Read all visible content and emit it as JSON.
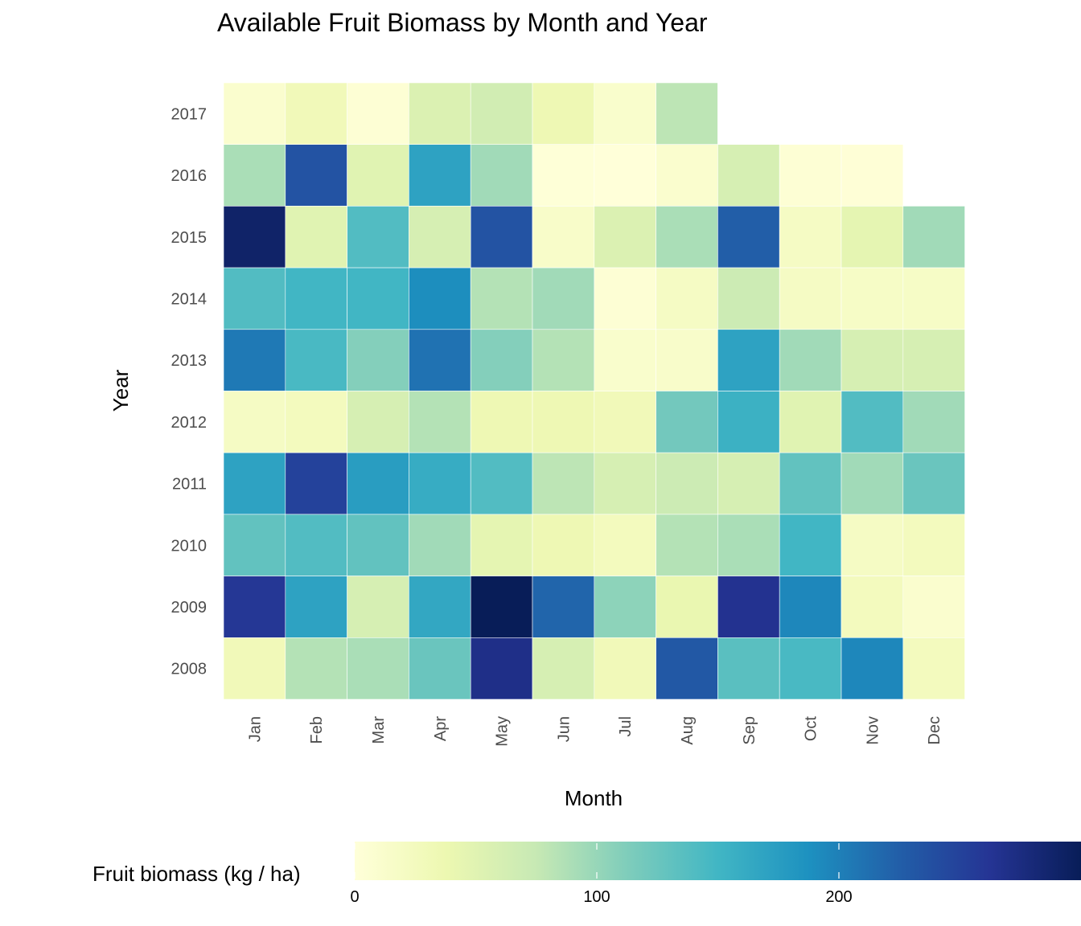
{
  "chart_data": {
    "type": "heatmap",
    "title": "Available Fruit Biomass by Month and Year",
    "xlabel": "Month",
    "ylabel": "Year",
    "months": [
      "Jan",
      "Feb",
      "Mar",
      "Apr",
      "May",
      "Jun",
      "Jul",
      "Aug",
      "Sep",
      "Oct",
      "Nov",
      "Dec"
    ],
    "years": [
      "2017",
      "2016",
      "2015",
      "2014",
      "2013",
      "2012",
      "2011",
      "2010",
      "2009",
      "2008"
    ],
    "values": [
      [
        10,
        30,
        5,
        55,
        65,
        35,
        12,
        80,
        null,
        null,
        null,
        null
      ],
      [
        90,
        235,
        50,
        170,
        95,
        2,
        0,
        10,
        60,
        5,
        3,
        null
      ],
      [
        290,
        50,
        140,
        60,
        235,
        15,
        55,
        90,
        225,
        20,
        45,
        95
      ],
      [
        140,
        150,
        150,
        190,
        85,
        95,
        5,
        20,
        70,
        20,
        18,
        18
      ],
      [
        205,
        145,
        110,
        210,
        110,
        85,
        12,
        14,
        170,
        95,
        60,
        60
      ],
      [
        20,
        25,
        60,
        85,
        35,
        35,
        30,
        120,
        155,
        50,
        140,
        95
      ],
      [
        170,
        250,
        175,
        160,
        140,
        80,
        60,
        70,
        60,
        130,
        95,
        125
      ],
      [
        130,
        140,
        130,
        95,
        45,
        35,
        25,
        85,
        90,
        150,
        20,
        25
      ],
      [
        260,
        170,
        60,
        165,
        310,
        220,
        105,
        40,
        265,
        195,
        25,
        10
      ],
      [
        30,
        85,
        90,
        125,
        270,
        60,
        30,
        230,
        135,
        145,
        195,
        25
      ]
    ],
    "legend": {
      "title": "Fruit biomass (kg / ha)",
      "ticks": [
        0,
        100,
        200
      ],
      "range": [
        0,
        300
      ],
      "colors": [
        "#ffffd9",
        "#edf8b1",
        "#c7e9b4",
        "#7fcdbb",
        "#41b6c4",
        "#1d91c0",
        "#225ea8",
        "#253494",
        "#081d58"
      ]
    },
    "tile_border_color": "#ffffff",
    "grid": false
  }
}
